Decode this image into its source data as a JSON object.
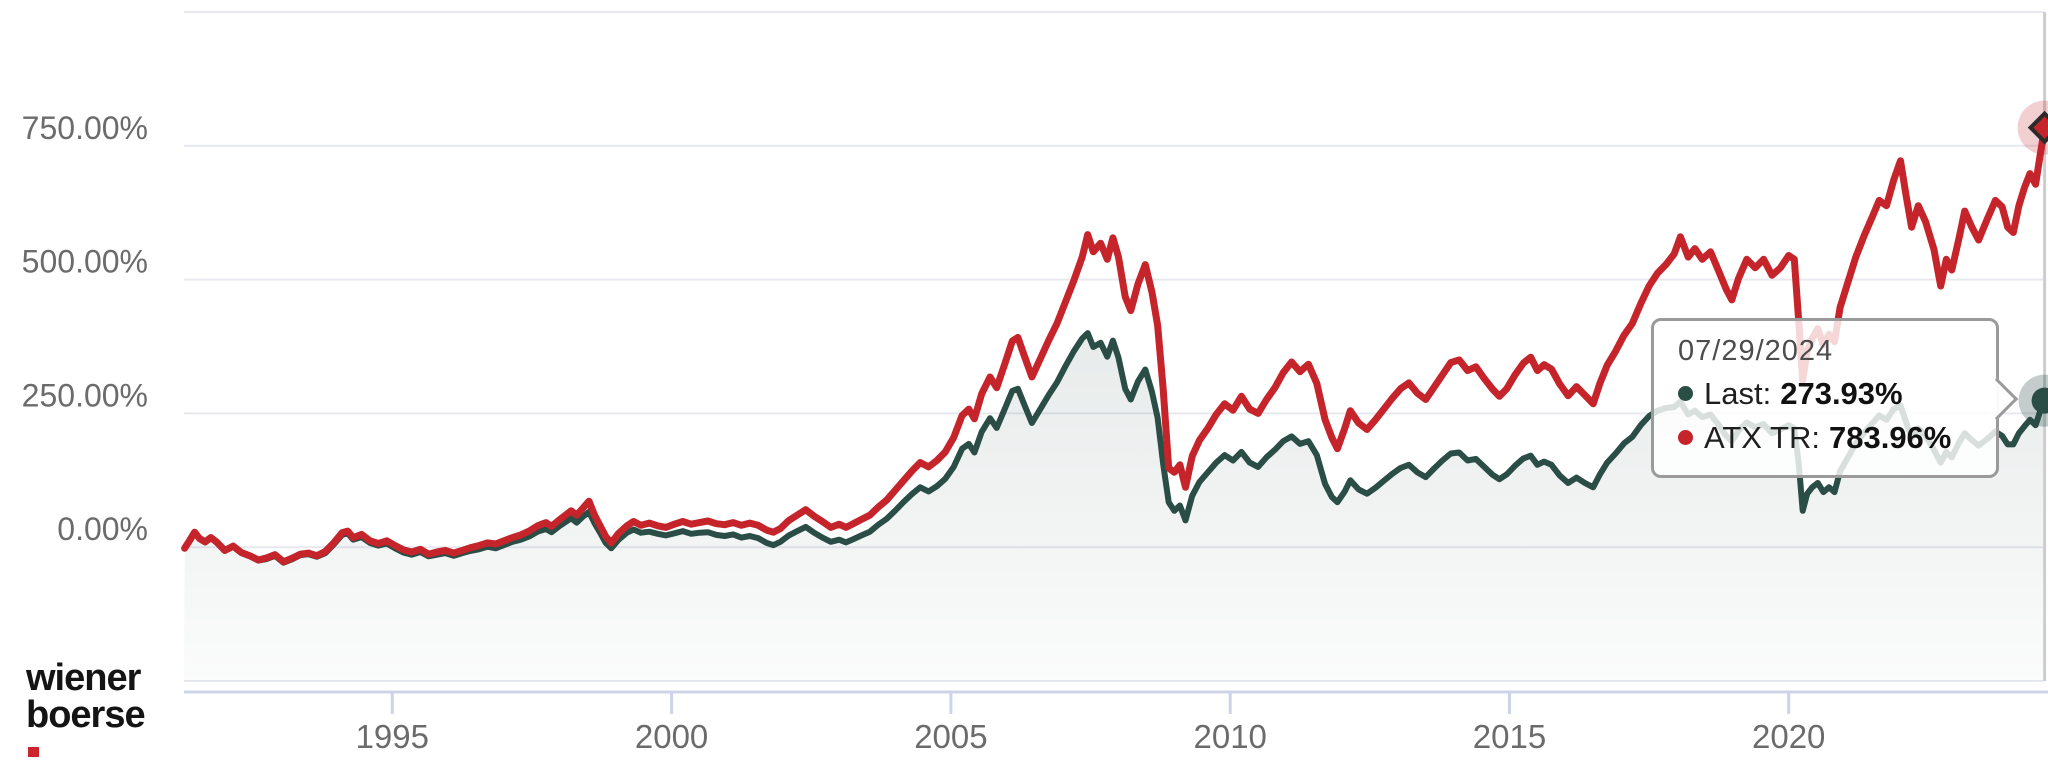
{
  "branding": {
    "logo_line1": "wiener",
    "logo_line2": "boerse"
  },
  "tooltip": {
    "date": "07/29/2024",
    "rows": [
      {
        "label": "Last:",
        "value": "273.93%",
        "color": "#2a4d46"
      },
      {
        "label": "ATX TR:",
        "value": "783.96%",
        "color": "#c5242b"
      }
    ]
  },
  "colors": {
    "red": "#c5242b",
    "teal": "#2a4d46",
    "grid": "#e7e9ef",
    "axis": "#ccd4e8",
    "crosshair": "#cdcdcd",
    "tick_label": "#6b6b6b",
    "red_halo": "rgba(197,36,43,0.22)",
    "teal_halo": "rgba(42,77,70,0.28)"
  },
  "chart_data": {
    "type": "line",
    "title": "",
    "xlabel": "",
    "ylabel": "",
    "grid": true,
    "legend_position": "tooltip-only",
    "xlim": [
      1991.27,
      2024.57
    ],
    "ylim": [
      -250,
      1000
    ],
    "y_gridlines": [
      1000,
      750,
      500,
      250,
      0,
      -250
    ],
    "y_ticks": [
      {
        "value": 750,
        "label": "750.00%"
      },
      {
        "value": 500,
        "label": "500.00%"
      },
      {
        "value": 250,
        "label": "250.00%"
      },
      {
        "value": 0,
        "label": "0.00%"
      }
    ],
    "x_ticks": [
      {
        "value": 1995,
        "label": "1995"
      },
      {
        "value": 2000,
        "label": "2000"
      },
      {
        "value": 2005,
        "label": "2005"
      },
      {
        "value": 2010,
        "label": "2010"
      },
      {
        "value": 2015,
        "label": "2015"
      },
      {
        "value": 2020,
        "label": "2020"
      }
    ],
    "hover_point": {
      "date": "07/29/2024",
      "last_pct": 273.93,
      "atx_tr_pct": 783.96
    },
    "x": [
      1991.28,
      1991.38,
      1991.46,
      1991.55,
      1991.65,
      1991.75,
      1991.85,
      1992.0,
      1992.15,
      1992.3,
      1992.45,
      1992.6,
      1992.75,
      1992.9,
      1993.05,
      1993.2,
      1993.35,
      1993.5,
      1993.65,
      1993.8,
      1993.95,
      1994.1,
      1994.2,
      1994.3,
      1994.45,
      1994.6,
      1994.75,
      1994.9,
      1995.05,
      1995.2,
      1995.35,
      1995.5,
      1995.65,
      1995.8,
      1995.95,
      1996.1,
      1996.25,
      1996.4,
      1996.55,
      1996.7,
      1996.85,
      1997.0,
      1997.15,
      1997.3,
      1997.45,
      1997.6,
      1997.75,
      1997.85,
      1998.0,
      1998.1,
      1998.2,
      1998.3,
      1998.42,
      1998.52,
      1998.62,
      1998.72,
      1998.82,
      1998.92,
      1999.05,
      1999.2,
      1999.32,
      1999.45,
      1999.6,
      1999.75,
      1999.9,
      2000.05,
      2000.2,
      2000.35,
      2000.5,
      2000.65,
      2000.8,
      2000.95,
      2001.1,
      2001.25,
      2001.4,
      2001.55,
      2001.7,
      2001.82,
      2001.95,
      2002.1,
      2002.25,
      2002.4,
      2002.55,
      2002.7,
      2002.85,
      2003.0,
      2003.12,
      2003.25,
      2003.4,
      2003.55,
      2003.7,
      2003.85,
      2004.0,
      2004.15,
      2004.3,
      2004.45,
      2004.6,
      2004.75,
      2004.9,
      2005.05,
      2005.2,
      2005.32,
      2005.42,
      2005.55,
      2005.7,
      2005.82,
      2005.95,
      2006.1,
      2006.2,
      2006.32,
      2006.45,
      2006.6,
      2006.75,
      2006.9,
      2007.05,
      2007.2,
      2007.35,
      2007.45,
      2007.55,
      2007.68,
      2007.8,
      2007.9,
      2008.0,
      2008.12,
      2008.22,
      2008.35,
      2008.48,
      2008.6,
      2008.7,
      2008.8,
      2008.9,
      2009.0,
      2009.1,
      2009.2,
      2009.32,
      2009.45,
      2009.6,
      2009.75,
      2009.9,
      2010.05,
      2010.2,
      2010.35,
      2010.5,
      2010.65,
      2010.8,
      2010.95,
      2011.1,
      2011.25,
      2011.4,
      2011.55,
      2011.7,
      2011.82,
      2011.92,
      2012.05,
      2012.15,
      2012.3,
      2012.45,
      2012.6,
      2012.75,
      2012.9,
      2013.05,
      2013.2,
      2013.35,
      2013.5,
      2013.65,
      2013.8,
      2013.95,
      2014.1,
      2014.25,
      2014.4,
      2014.55,
      2014.7,
      2014.82,
      2014.95,
      2015.1,
      2015.25,
      2015.38,
      2015.5,
      2015.62,
      2015.75,
      2015.9,
      2016.05,
      2016.2,
      2016.35,
      2016.5,
      2016.62,
      2016.75,
      2016.9,
      2017.05,
      2017.2,
      2017.35,
      2017.5,
      2017.65,
      2017.8,
      2017.95,
      2018.06,
      2018.2,
      2018.32,
      2018.45,
      2018.6,
      2018.75,
      2018.88,
      2018.98,
      2019.1,
      2019.25,
      2019.4,
      2019.55,
      2019.7,
      2019.85,
      2020.0,
      2020.1,
      2020.18,
      2020.25,
      2020.33,
      2020.42,
      2020.52,
      2020.62,
      2020.72,
      2020.82,
      2020.92,
      2021.05,
      2021.2,
      2021.35,
      2021.5,
      2021.62,
      2021.75,
      2021.88,
      2022.0,
      2022.1,
      2022.2,
      2022.32,
      2022.45,
      2022.6,
      2022.72,
      2022.82,
      2022.92,
      2023.05,
      2023.15,
      2023.28,
      2023.4,
      2023.55,
      2023.7,
      2023.82,
      2023.92,
      2024.02,
      2024.12,
      2024.22,
      2024.32,
      2024.42,
      2024.5,
      2024.58
    ],
    "series": [
      {
        "name": "Last",
        "color": "#2a4d46",
        "area": true,
        "line_width": 6,
        "values": [
          -2,
          13,
          27,
          15,
          9,
          17,
          9,
          -7,
          1,
          -11,
          -17,
          -25,
          -22,
          -16,
          -29,
          -23,
          -15,
          -13,
          -18,
          -11,
          5,
          23,
          26,
          14,
          19,
          8,
          3,
          7,
          -2,
          -10,
          -14,
          -9,
          -17,
          -14,
          -11,
          -16,
          -11,
          -7,
          -4,
          1,
          -2,
          4,
          10,
          14,
          20,
          29,
          34,
          28,
          40,
          47,
          54,
          46,
          58,
          66,
          45,
          27,
          8,
          -2,
          14,
          27,
          33,
          27,
          29,
          25,
          22,
          26,
          30,
          25,
          27,
          28,
          23,
          21,
          24,
          18,
          21,
          17,
          8,
          4,
          10,
          22,
          30,
          38,
          27,
          18,
          10,
          14,
          9,
          15,
          22,
          29,
          42,
          53,
          68,
          84,
          99,
          112,
          104,
          114,
          128,
          150,
          184,
          193,
          177,
          215,
          241,
          223,
          255,
          292,
          296,
          265,
          232,
          258,
          284,
          308,
          338,
          366,
          390,
          400,
          374,
          382,
          356,
          386,
          354,
          296,
          276,
          310,
          332,
          290,
          242,
          155,
          84,
          68,
          78,
          50,
          96,
          122,
          140,
          158,
          172,
          162,
          178,
          158,
          150,
          168,
          182,
          198,
          207,
          193,
          198,
          172,
          118,
          94,
          84,
          104,
          125,
          108,
          100,
          111,
          124,
          137,
          148,
          154,
          140,
          131,
          147,
          162,
          175,
          177,
          162,
          165,
          150,
          135,
          127,
          136,
          152,
          166,
          171,
          154,
          160,
          154,
          134,
          120,
          130,
          120,
          112,
          136,
          158,
          175,
          194,
          206,
          228,
          245,
          255,
          260,
          262,
          272,
          248,
          255,
          243,
          248,
          228,
          208,
          198,
          218,
          233,
          224,
          230,
          213,
          220,
          228,
          222,
          155,
          68,
          100,
          112,
          120,
          103,
          112,
          103,
          142,
          166,
          194,
          214,
          232,
          246,
          238,
          258,
          265,
          234,
          204,
          222,
          208,
          182,
          158,
          178,
          168,
          196,
          213,
          200,
          190,
          202,
          216,
          208,
          192,
          192,
          213,
          226,
          238,
          228,
          254,
          273.93
        ]
      },
      {
        "name": "ATX TR",
        "color": "#c5242b",
        "area": false,
        "line_width": 7,
        "values": [
          -2,
          14,
          28,
          16,
          10,
          18,
          10,
          -6,
          2,
          -10,
          -16,
          -24,
          -20,
          -14,
          -27,
          -21,
          -13,
          -11,
          -16,
          -8,
          8,
          27,
          30,
          18,
          24,
          12,
          7,
          12,
          3,
          -5,
          -9,
          -4,
          -13,
          -9,
          -6,
          -11,
          -6,
          -1,
          3,
          8,
          6,
          12,
          18,
          23,
          30,
          40,
          46,
          39,
          52,
          60,
          68,
          60,
          74,
          86,
          60,
          40,
          20,
          8,
          26,
          40,
          48,
          41,
          45,
          40,
          37,
          43,
          48,
          43,
          46,
          49,
          44,
          42,
          46,
          41,
          45,
          41,
          32,
          28,
          35,
          50,
          60,
          70,
          58,
          48,
          37,
          43,
          37,
          44,
          52,
          60,
          75,
          88,
          106,
          124,
          142,
          158,
          150,
          162,
          178,
          205,
          246,
          258,
          240,
          286,
          318,
          298,
          338,
          385,
          392,
          356,
          318,
          352,
          386,
          418,
          458,
          498,
          542,
          584,
          552,
          568,
          538,
          578,
          542,
          468,
          442,
          492,
          528,
          476,
          415,
          295,
          148,
          140,
          154,
          112,
          170,
          200,
          222,
          248,
          268,
          256,
          282,
          258,
          250,
          276,
          298,
          326,
          346,
          328,
          342,
          306,
          238,
          205,
          184,
          222,
          255,
          232,
          220,
          238,
          258,
          278,
          296,
          307,
          288,
          276,
          299,
          322,
          345,
          350,
          330,
          337,
          315,
          295,
          282,
          296,
          322,
          344,
          355,
          330,
          341,
          333,
          305,
          283,
          300,
          284,
          268,
          306,
          340,
          366,
          396,
          418,
          455,
          488,
          512,
          528,
          548,
          580,
          542,
          558,
          538,
          552,
          515,
          482,
          462,
          502,
          538,
          522,
          538,
          508,
          522,
          545,
          538,
          420,
          312,
          368,
          390,
          408,
          378,
          398,
          384,
          448,
          492,
          542,
          582,
          618,
          648,
          638,
          686,
          722,
          658,
          598,
          638,
          608,
          556,
          488,
          538,
          518,
          578,
          628,
          598,
          574,
          612,
          648,
          636,
          598,
          588,
          638,
          672,
          698,
          678,
          732,
          783.96
        ]
      }
    ]
  }
}
